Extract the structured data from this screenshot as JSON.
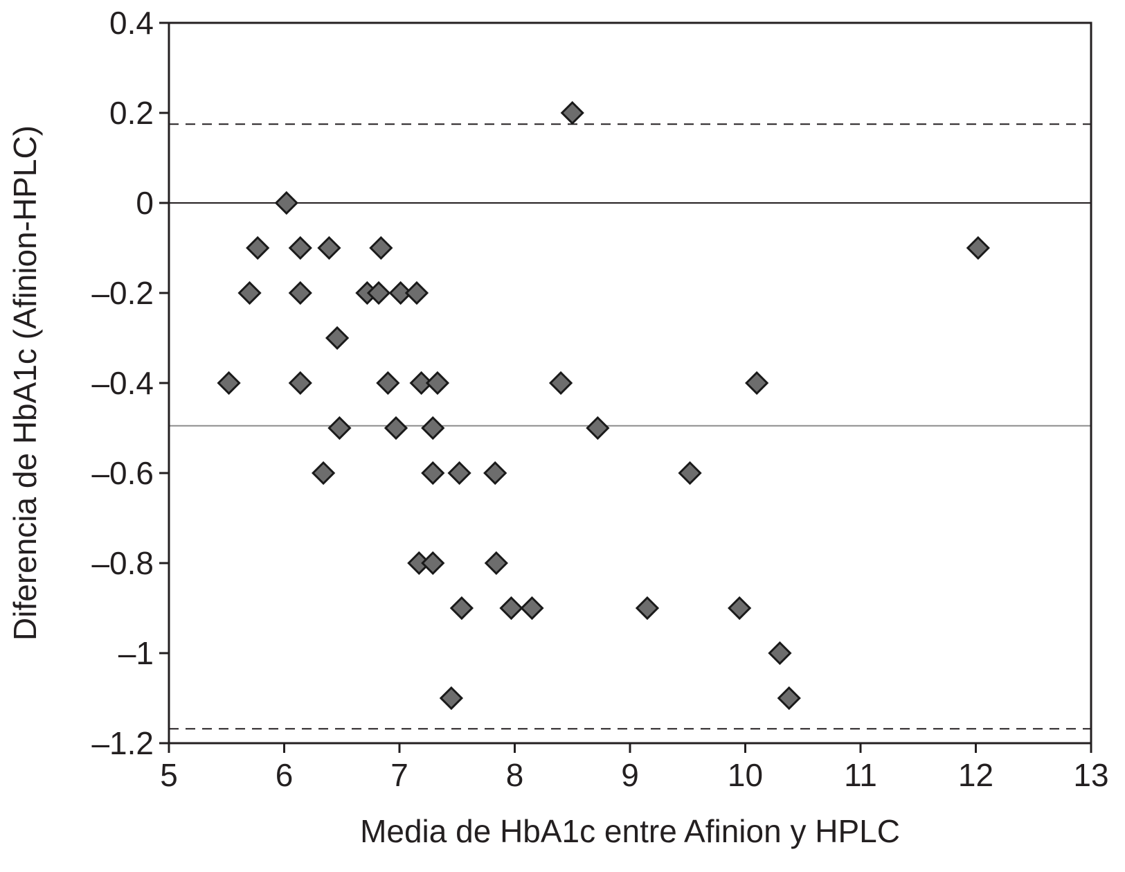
{
  "chart_data": {
    "type": "scatter",
    "title": "",
    "xlabel": "Media de HbA1c entre Afinion y HPLC",
    "ylabel": "Diferencia de HbA1c (Afinion-HPLC)",
    "xlim": [
      5,
      13
    ],
    "ylim": [
      -1.2,
      0.4
    ],
    "x_ticks": [
      5,
      6,
      7,
      8,
      9,
      10,
      11,
      12,
      13
    ],
    "x_tick_labels": [
      "5",
      "6",
      "7",
      "8",
      "9",
      "10",
      "11",
      "12",
      "13"
    ],
    "y_ticks": [
      0.4,
      0.2,
      0,
      -0.2,
      -0.4,
      -0.6,
      -0.8,
      -1,
      -1.2
    ],
    "y_tick_labels": [
      "0.4",
      "0.2",
      "0",
      "–0.2",
      "–0.4",
      "–0.6",
      "–0.8",
      "–1",
      "–1.2"
    ],
    "grid": false,
    "marker": "diamond",
    "marker_color": "#6d6d6d",
    "marker_edge_color": "#1a1a1a",
    "reference_lines": [
      {
        "y": 0.175,
        "style": "dashed",
        "color": "#231f20"
      },
      {
        "y": 0,
        "style": "solid",
        "color": "#231f20"
      },
      {
        "y": -0.495,
        "style": "solid",
        "color": "#8c8c8c"
      },
      {
        "y": -1.168,
        "style": "dashed",
        "color": "#231f20"
      }
    ],
    "series": [
      {
        "points": [
          {
            "x": 5.52,
            "y": -0.4
          },
          {
            "x": 5.7,
            "y": -0.2
          },
          {
            "x": 5.77,
            "y": -0.1
          },
          {
            "x": 6.02,
            "y": 0.0
          },
          {
            "x": 6.14,
            "y": -0.1
          },
          {
            "x": 6.14,
            "y": -0.2
          },
          {
            "x": 6.14,
            "y": -0.4
          },
          {
            "x": 6.34,
            "y": -0.6
          },
          {
            "x": 6.39,
            "y": -0.1
          },
          {
            "x": 6.46,
            "y": -0.3
          },
          {
            "x": 6.48,
            "y": -0.5
          },
          {
            "x": 6.72,
            "y": -0.2
          },
          {
            "x": 6.82,
            "y": -0.2
          },
          {
            "x": 6.84,
            "y": -0.1
          },
          {
            "x": 6.9,
            "y": -0.4
          },
          {
            "x": 6.97,
            "y": -0.5
          },
          {
            "x": 7.01,
            "y": -0.2
          },
          {
            "x": 7.15,
            "y": -0.2
          },
          {
            "x": 7.17,
            "y": -0.8
          },
          {
            "x": 7.19,
            "y": -0.4
          },
          {
            "x": 7.29,
            "y": -0.5
          },
          {
            "x": 7.29,
            "y": -0.6
          },
          {
            "x": 7.29,
            "y": -0.8
          },
          {
            "x": 7.33,
            "y": -0.4
          },
          {
            "x": 7.45,
            "y": -1.1
          },
          {
            "x": 7.52,
            "y": -0.6
          },
          {
            "x": 7.54,
            "y": -0.9
          },
          {
            "x": 7.83,
            "y": -0.6
          },
          {
            "x": 7.84,
            "y": -0.8
          },
          {
            "x": 7.97,
            "y": -0.9
          },
          {
            "x": 8.15,
            "y": -0.9
          },
          {
            "x": 8.4,
            "y": -0.4
          },
          {
            "x": 8.5,
            "y": 0.2
          },
          {
            "x": 8.72,
            "y": -0.5
          },
          {
            "x": 9.15,
            "y": -0.9
          },
          {
            "x": 9.52,
            "y": -0.6
          },
          {
            "x": 9.95,
            "y": -0.9
          },
          {
            "x": 10.1,
            "y": -0.4
          },
          {
            "x": 10.3,
            "y": -1.0
          },
          {
            "x": 10.38,
            "y": -1.1
          },
          {
            "x": 12.02,
            "y": -0.1
          }
        ]
      }
    ]
  }
}
